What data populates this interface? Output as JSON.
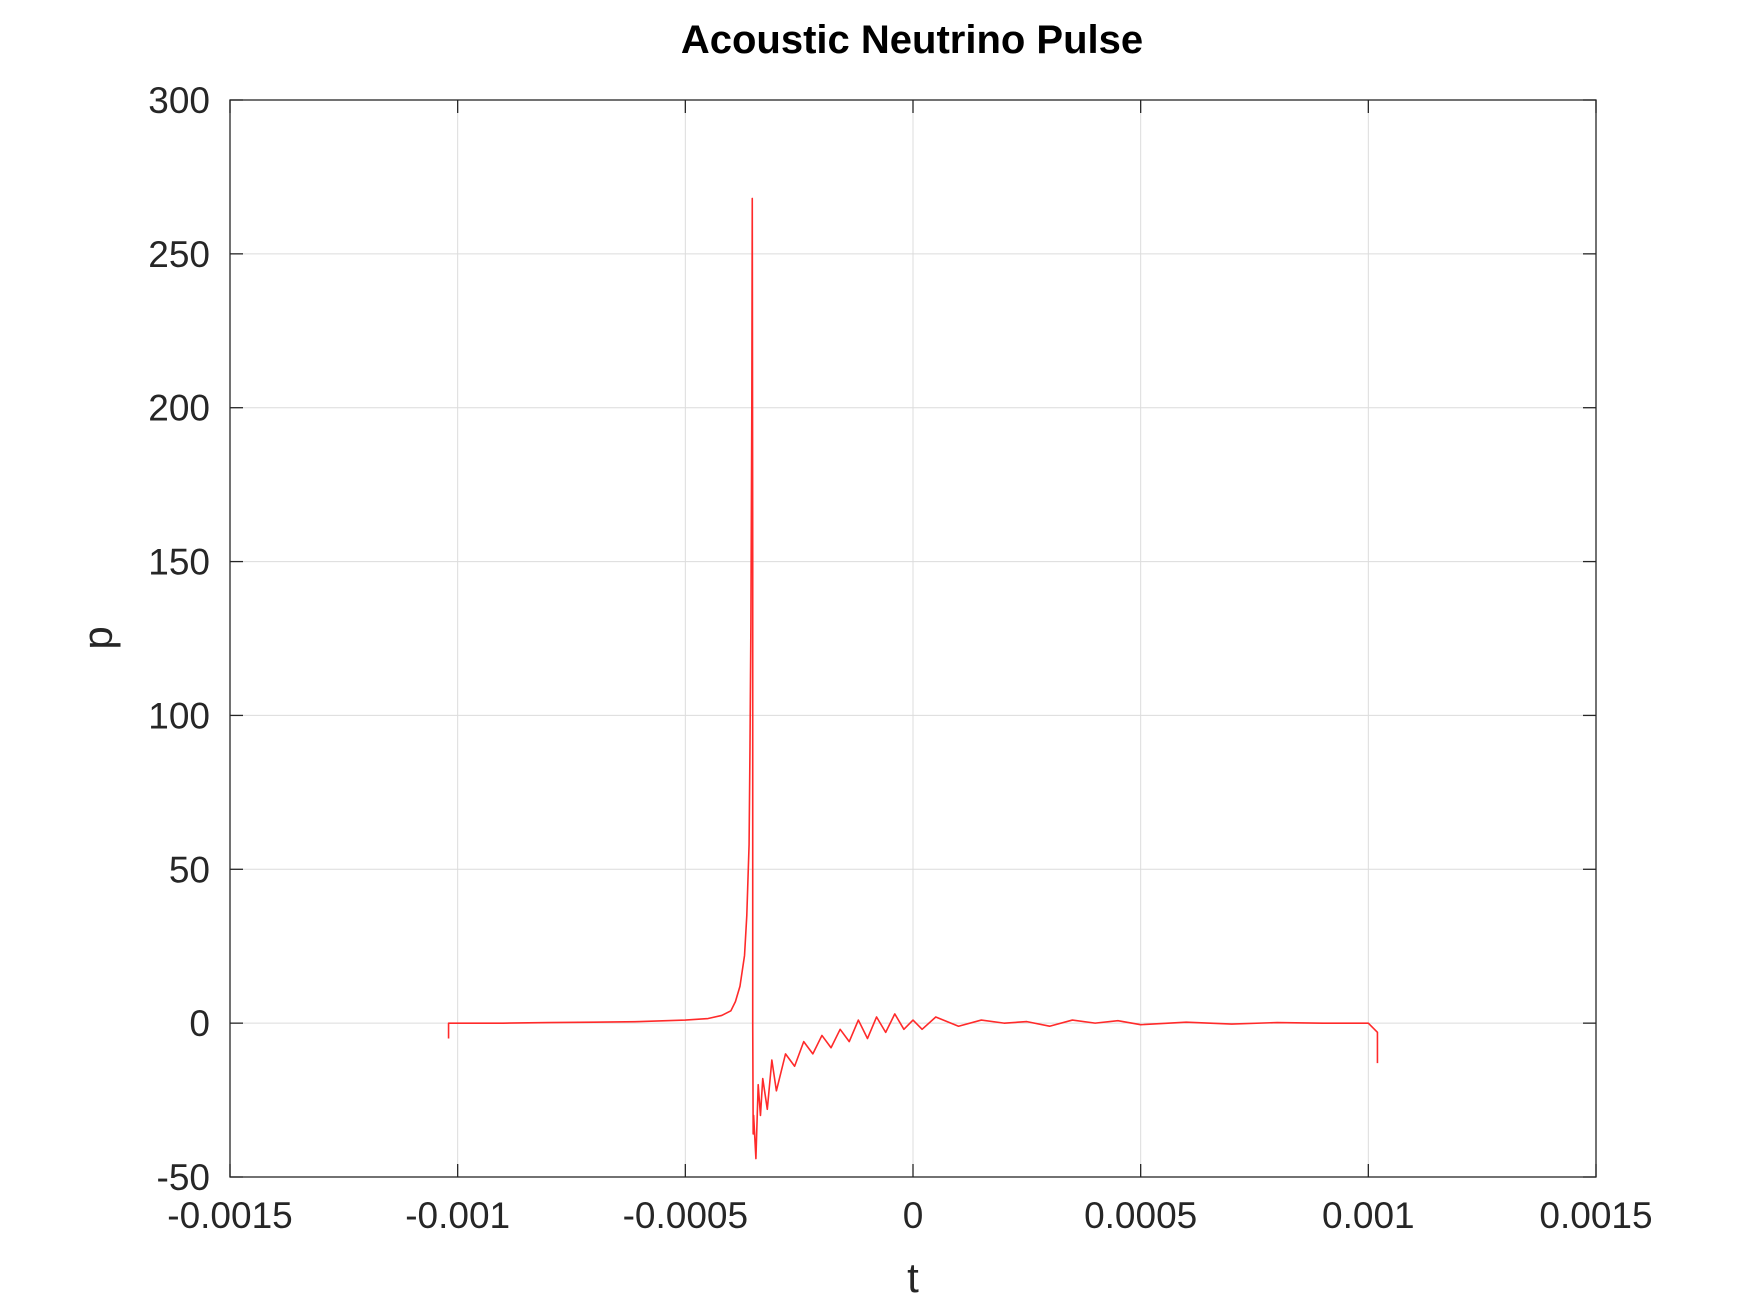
{
  "chart_data": {
    "type": "line",
    "title": "Acoustic Neutrino Pulse",
    "xlabel": "t",
    "ylabel": "p",
    "xlim": [
      -0.0015,
      0.0015
    ],
    "ylim": [
      -50,
      300
    ],
    "xticks": [
      -0.0015,
      -0.001,
      -0.0005,
      0,
      0.0005,
      0.001,
      0.0015
    ],
    "xtick_labels": [
      "-0.0015",
      "-0.001",
      "-0.0005",
      "0",
      "0.0005",
      "0.001",
      "0.0015"
    ],
    "yticks": [
      -50,
      0,
      50,
      100,
      150,
      200,
      250,
      300
    ],
    "ytick_labels": [
      "-50",
      "0",
      "50",
      "100",
      "150",
      "200",
      "250",
      "300"
    ],
    "grid": true,
    "series": [
      {
        "color": "#ff2a2a",
        "x": [
          -0.00102,
          -0.00102,
          -0.0009,
          -0.0008,
          -0.0007,
          -0.0006,
          -0.0005,
          -0.00045,
          -0.00042,
          -0.0004,
          -0.00039,
          -0.00038,
          -0.00037,
          -0.000365,
          -0.00036,
          -0.000358,
          -0.000356,
          -0.000354,
          -0.000353,
          -0.000352,
          -0.000352,
          -0.000351,
          -0.00035,
          -0.000345,
          -0.00034,
          -0.000335,
          -0.00033,
          -0.00032,
          -0.00031,
          -0.0003,
          -0.00028,
          -0.00026,
          -0.00024,
          -0.00022,
          -0.0002,
          -0.00018,
          -0.00016,
          -0.00014,
          -0.00012,
          -0.0001,
          -8e-05,
          -6e-05,
          -4e-05,
          -2e-05,
          0,
          2e-05,
          5e-05,
          0.0001,
          0.00015,
          0.0002,
          0.00025,
          0.0003,
          0.00035,
          0.0004,
          0.00045,
          0.0005,
          0.0006,
          0.0007,
          0.0008,
          0.0009,
          0.001,
          0.00102,
          0.00102
        ],
        "y": [
          -5,
          0,
          0,
          0.2,
          0.3,
          0.5,
          1,
          1.5,
          2.5,
          4,
          7,
          12,
          22,
          35,
          58,
          90,
          130,
          200,
          268,
          150,
          0,
          -36,
          -30,
          -44,
          -20,
          -30,
          -18,
          -28,
          -12,
          -22,
          -10,
          -14,
          -6,
          -10,
          -4,
          -8,
          -2,
          -6,
          1,
          -5,
          2,
          -3,
          3,
          -2,
          1,
          -2,
          2,
          -1,
          1,
          0,
          0.5,
          -1,
          1,
          0,
          0.8,
          -0.5,
          0.3,
          -0.3,
          0.2,
          0,
          0,
          -3,
          -13
        ]
      }
    ]
  }
}
